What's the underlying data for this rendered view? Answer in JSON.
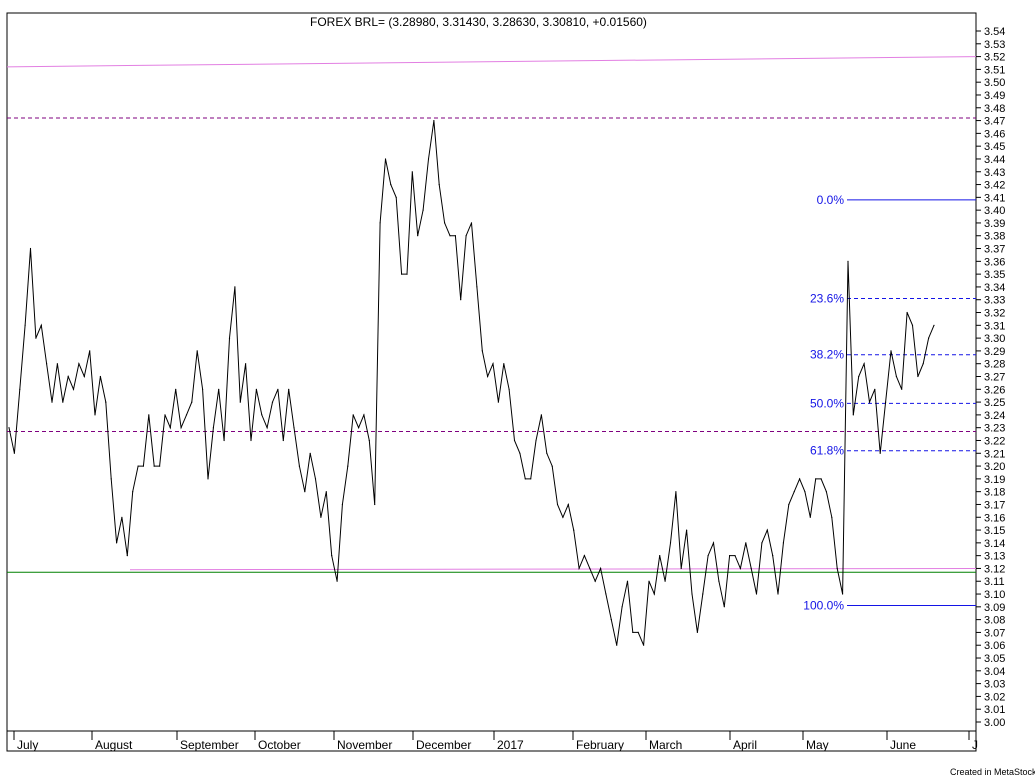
{
  "chart_data": {
    "type": "line",
    "title": "FOREX BRL= (3.28980, 3.31430, 3.28630, 3.30810, +0.01560)",
    "ylim": [
      2.995,
      3.545
    ],
    "y_ticks": [
      3.0,
      3.01,
      3.02,
      3.03,
      3.04,
      3.05,
      3.06,
      3.07,
      3.08,
      3.09,
      3.1,
      3.11,
      3.12,
      3.13,
      3.14,
      3.15,
      3.16,
      3.17,
      3.18,
      3.19,
      3.2,
      3.21,
      3.22,
      3.23,
      3.24,
      3.25,
      3.26,
      3.27,
      3.28,
      3.29,
      3.3,
      3.31,
      3.32,
      3.33,
      3.34,
      3.35,
      3.36,
      3.37,
      3.38,
      3.39,
      3.4,
      3.41,
      3.42,
      3.43,
      3.44,
      3.45,
      3.46,
      3.47,
      3.48,
      3.49,
      3.5,
      3.51,
      3.52,
      3.53,
      3.54
    ],
    "x_labels": [
      "July",
      "August",
      "September",
      "October",
      "November",
      "December",
      "2017",
      "February",
      "March",
      "April",
      "May",
      "June",
      "J"
    ],
    "series": [
      {
        "values": [
          3.23,
          3.21,
          3.26,
          3.31,
          3.37,
          3.3,
          3.31,
          3.28,
          3.25,
          3.28,
          3.25,
          3.27,
          3.26,
          3.28,
          3.27,
          3.29,
          3.24,
          3.27,
          3.25,
          3.19,
          3.14,
          3.16,
          3.13,
          3.18,
          3.2,
          3.2,
          3.24,
          3.2,
          3.2,
          3.24,
          3.23,
          3.26,
          3.23,
          3.24,
          3.25,
          3.29,
          3.26,
          3.19,
          3.23,
          3.26,
          3.22,
          3.3,
          3.34,
          3.25,
          3.28,
          3.22,
          3.26,
          3.24,
          3.23,
          3.25,
          3.26,
          3.22,
          3.26,
          3.23,
          3.2,
          3.18,
          3.21,
          3.19,
          3.16,
          3.18,
          3.13,
          3.11,
          3.17,
          3.2,
          3.24,
          3.23,
          3.24,
          3.22,
          3.17,
          3.39,
          3.44,
          3.42,
          3.41,
          3.35,
          3.35,
          3.43,
          3.38,
          3.4,
          3.44,
          3.47,
          3.42,
          3.39,
          3.38,
          3.38,
          3.33,
          3.38,
          3.39,
          3.34,
          3.29,
          3.27,
          3.28,
          3.25,
          3.28,
          3.26,
          3.22,
          3.21,
          3.19,
          3.19,
          3.22,
          3.24,
          3.21,
          3.2,
          3.17,
          3.16,
          3.17,
          3.15,
          3.12,
          3.13,
          3.12,
          3.11,
          3.12,
          3.1,
          3.08,
          3.06,
          3.09,
          3.11,
          3.07,
          3.07,
          3.06,
          3.11,
          3.1,
          3.13,
          3.11,
          3.14,
          3.18,
          3.12,
          3.15,
          3.1,
          3.07,
          3.1,
          3.13,
          3.14,
          3.11,
          3.09,
          3.13,
          3.13,
          3.12,
          3.14,
          3.12,
          3.1,
          3.14,
          3.15,
          3.13,
          3.1,
          3.14,
          3.17,
          3.18,
          3.19,
          3.18,
          3.16,
          3.19,
          3.19,
          3.18,
          3.16,
          3.12,
          3.1,
          3.36,
          3.24,
          3.27,
          3.28,
          3.25,
          3.26,
          3.21,
          3.25,
          3.29,
          3.27,
          3.26,
          3.32,
          3.31,
          3.27,
          3.28,
          3.3,
          3.31
        ]
      }
    ],
    "reference_lines": [
      {
        "style": "dashed",
        "color": "#7f007f",
        "y": 3.472
      },
      {
        "style": "dashed",
        "color": "#7f007f",
        "y": 3.227
      },
      {
        "style": "solid",
        "color": "#008000",
        "y": 3.117
      },
      {
        "style": "trend",
        "color": "#e27fe2",
        "y_start": 3.512,
        "y_end": 3.52
      },
      {
        "style": "trend",
        "color": "#e27fe2",
        "y_start": 3.119,
        "y_end": 3.12
      }
    ],
    "fibonacci": [
      {
        "label": "0.0%",
        "y": 3.408
      },
      {
        "label": "23.6%",
        "y": 3.331
      },
      {
        "label": "38.2%",
        "y": 3.287
      },
      {
        "label": "50.0%",
        "y": 3.249
      },
      {
        "label": "61.8%",
        "y": 3.212
      },
      {
        "label": "100.0%",
        "y": 3.091
      }
    ],
    "grid": false,
    "colors": {
      "line": "#000000",
      "fib": "#1414e6",
      "background": "#ffffff"
    }
  },
  "footer": {
    "credit": "Created in MetaStock"
  }
}
